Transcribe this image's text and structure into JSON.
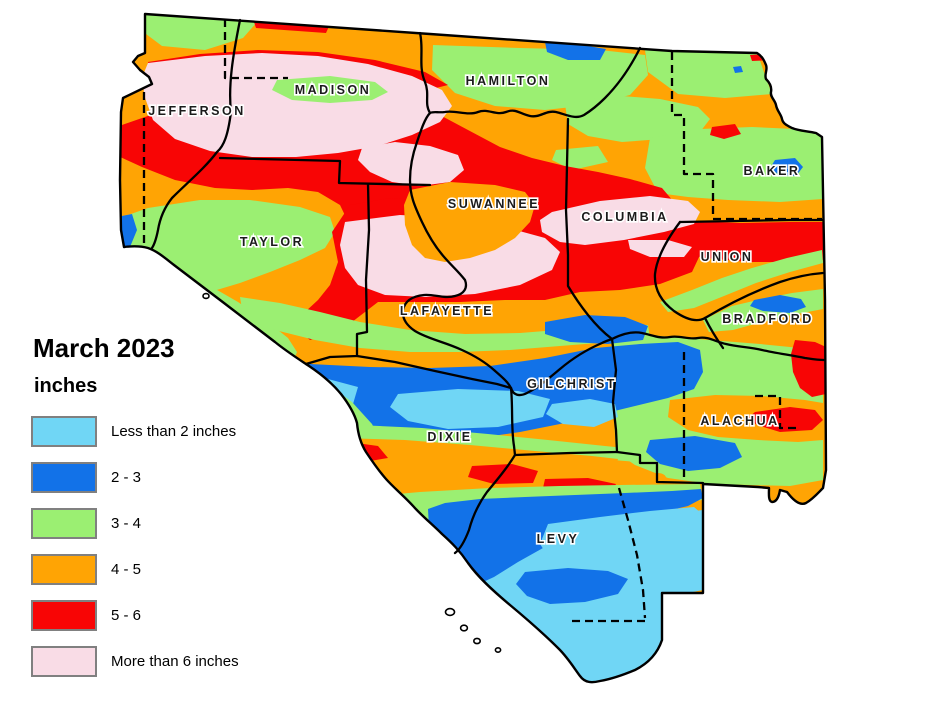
{
  "title": "March 2023",
  "units_label": "inches",
  "colors": {
    "less_than_2": "#70D6F5",
    "from_2_to_3": "#1272E8",
    "from_3_to_4": "#9BEF72",
    "from_4_to_5": "#FFA404",
    "from_5_to_6": "#F80505",
    "more_than_6": "#F9DCE6"
  },
  "legend": [
    {
      "label": "Less than 2 inches",
      "color_key": "less_than_2"
    },
    {
      "label": "2 - 3",
      "color_key": "from_2_to_3"
    },
    {
      "label": "3 - 4",
      "color_key": "from_3_to_4"
    },
    {
      "label": "4 - 5",
      "color_key": "from_4_to_5"
    },
    {
      "label": "5 - 6",
      "color_key": "from_5_to_6"
    },
    {
      "label": "More than 6 inches",
      "color_key": "more_than_6"
    }
  ],
  "map": {
    "counties": [
      "JEFFERSON",
      "MADISON",
      "HAMILTON",
      "BAKER",
      "SUWANNEE",
      "COLUMBIA",
      "TAYLOR",
      "UNION",
      "BRADFORD",
      "LAFAYETTE",
      "GILCHRIST",
      "ALACHUA",
      "DIXIE",
      "LEVY"
    ]
  }
}
